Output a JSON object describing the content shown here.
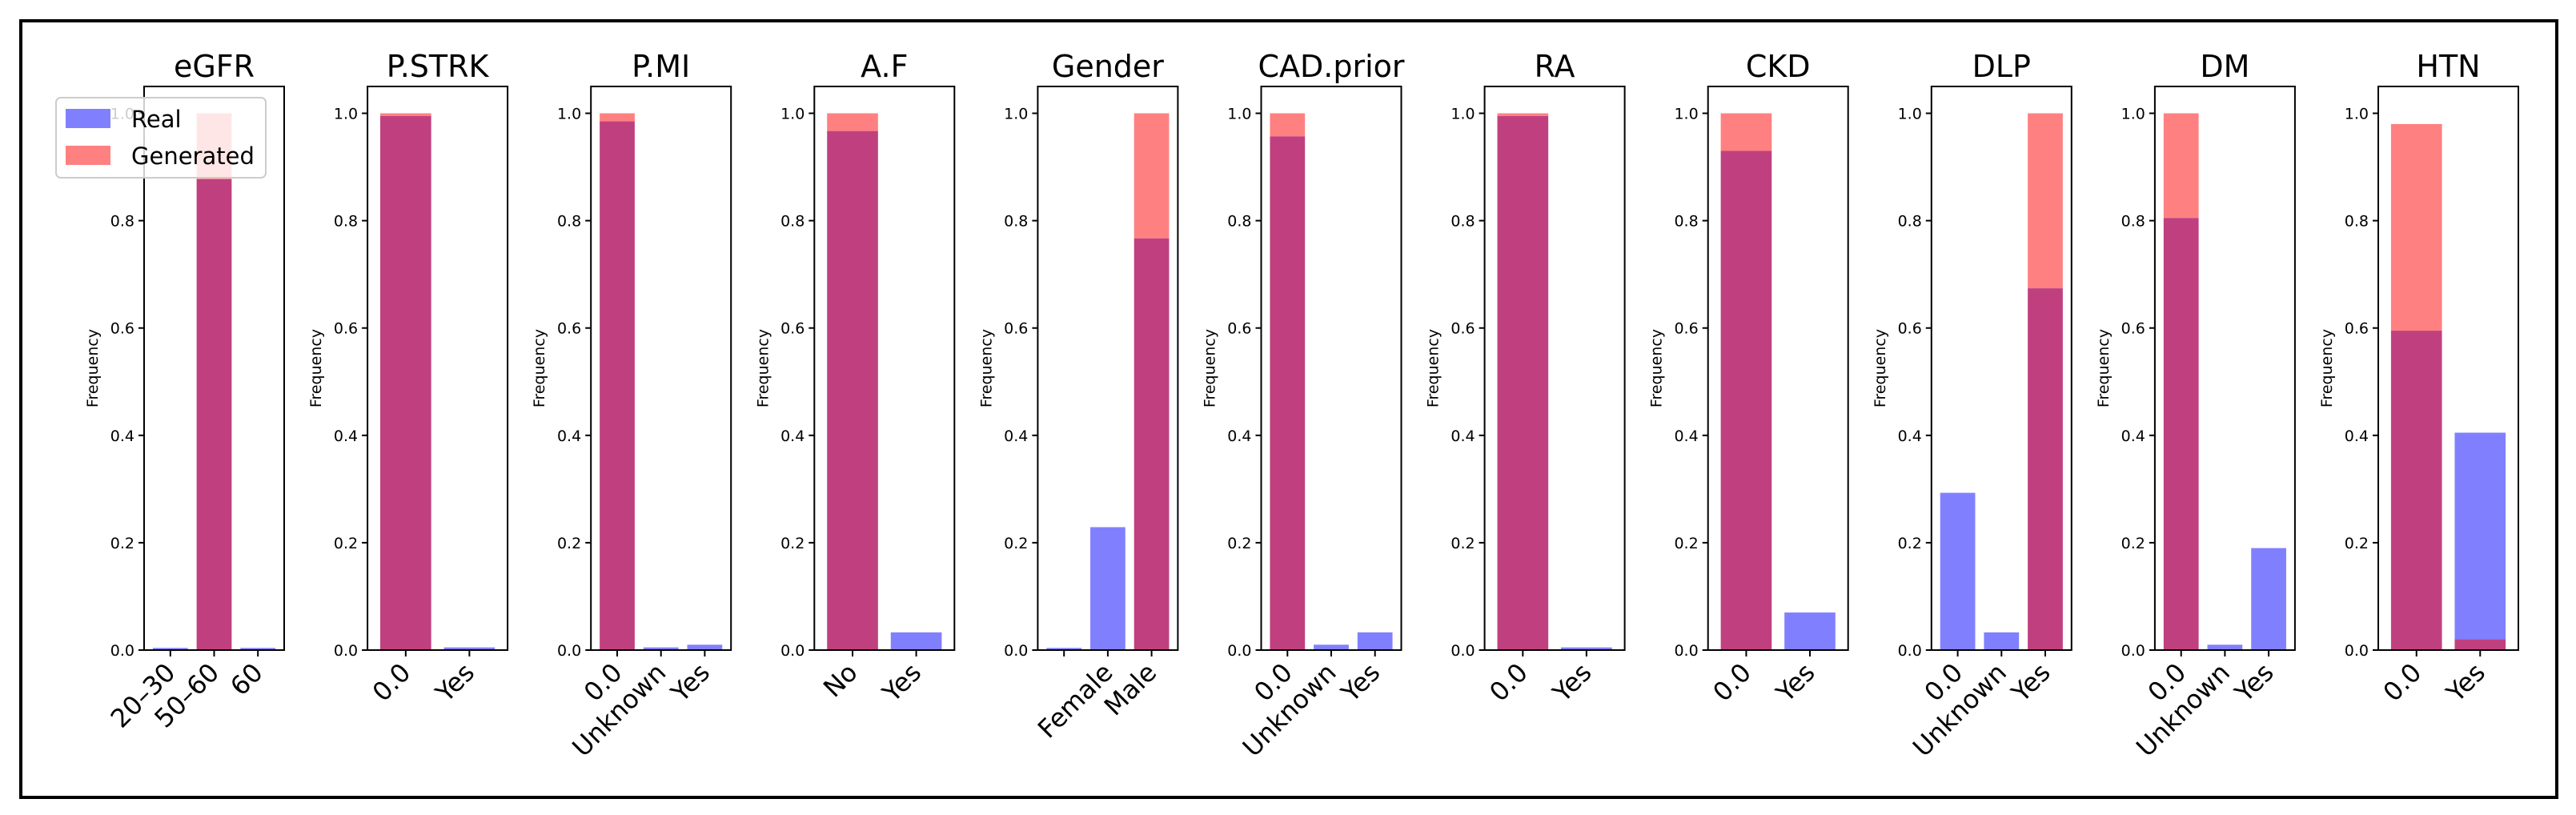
{
  "legend": {
    "location": "upper-left",
    "entries": [
      {
        "label": "Real",
        "color": "#8080ff"
      },
      {
        "label": "Generated",
        "color": "#ff8080"
      }
    ]
  },
  "colors": {
    "real": "#8080ff",
    "generated": "#ff8080",
    "overlap": "#c0407f"
  },
  "chart_data": [
    {
      "type": "bar",
      "title": "eGFR",
      "ylabel": "Frequency",
      "ylim": [
        0,
        1.0
      ],
      "yticks": [
        "0.0",
        "0.2",
        "0.4",
        "0.6",
        "0.8",
        "1.0"
      ],
      "categories": [
        "20–30",
        "50–60",
        "60"
      ],
      "series": [
        {
          "name": "Real",
          "values": [
            0.004,
            0.877,
            0.004
          ]
        },
        {
          "name": "Generated",
          "values": [
            0.0,
            1.0,
            0.0
          ]
        }
      ]
    },
    {
      "type": "bar",
      "title": "P.STRK",
      "ylabel": "Frequency",
      "ylim": [
        0,
        1.0
      ],
      "yticks": [
        "0.0",
        "0.2",
        "0.4",
        "0.6",
        "0.8",
        "1.0"
      ],
      "categories": [
        "0.0",
        "Yes"
      ],
      "series": [
        {
          "name": "Real",
          "values": [
            0.995,
            0.005
          ]
        },
        {
          "name": "Generated",
          "values": [
            1.0,
            0.0
          ]
        }
      ]
    },
    {
      "type": "bar",
      "title": "P.MI",
      "ylabel": "Frequency",
      "ylim": [
        0,
        1.0
      ],
      "yticks": [
        "0.0",
        "0.2",
        "0.4",
        "0.6",
        "0.8",
        "1.0"
      ],
      "categories": [
        "0.0",
        "Unknown",
        "Yes"
      ],
      "series": [
        {
          "name": "Real",
          "values": [
            0.985,
            0.005,
            0.01
          ]
        },
        {
          "name": "Generated",
          "values": [
            1.0,
            0.0,
            0.0
          ]
        }
      ]
    },
    {
      "type": "bar",
      "title": "A.F",
      "ylabel": "Frequency",
      "ylim": [
        0,
        1.0
      ],
      "yticks": [
        "0.0",
        "0.2",
        "0.4",
        "0.6",
        "0.8",
        "1.0"
      ],
      "categories": [
        "No",
        "Yes"
      ],
      "series": [
        {
          "name": "Real",
          "values": [
            0.967,
            0.033
          ]
        },
        {
          "name": "Generated",
          "values": [
            1.0,
            0.0
          ]
        }
      ]
    },
    {
      "type": "bar",
      "title": "Gender",
      "ylabel": "Frequency",
      "ylim": [
        0,
        1.0
      ],
      "yticks": [
        "0.0",
        "0.2",
        "0.4",
        "0.6",
        "0.8",
        "1.0"
      ],
      "categories": [
        "",
        "Female",
        "Male"
      ],
      "series": [
        {
          "name": "Real",
          "values": [
            0.004,
            0.229,
            0.767
          ]
        },
        {
          "name": "Generated",
          "values": [
            0.0,
            0.0,
            1.0
          ]
        }
      ]
    },
    {
      "type": "bar",
      "title": "CAD.prior",
      "ylabel": "Frequency",
      "ylim": [
        0,
        1.0
      ],
      "yticks": [
        "0.0",
        "0.2",
        "0.4",
        "0.6",
        "0.8",
        "1.0"
      ],
      "categories": [
        "0.0",
        "Unknown",
        "Yes"
      ],
      "series": [
        {
          "name": "Real",
          "values": [
            0.957,
            0.01,
            0.033
          ]
        },
        {
          "name": "Generated",
          "values": [
            1.0,
            0.0,
            0.0
          ]
        }
      ]
    },
    {
      "type": "bar",
      "title": "RA",
      "ylabel": "Frequency",
      "ylim": [
        0,
        1.0
      ],
      "yticks": [
        "0.0",
        "0.2",
        "0.4",
        "0.6",
        "0.8",
        "1.0"
      ],
      "categories": [
        "0.0",
        "Yes"
      ],
      "series": [
        {
          "name": "Real",
          "values": [
            0.995,
            0.005
          ]
        },
        {
          "name": "Generated",
          "values": [
            1.0,
            0.0
          ]
        }
      ]
    },
    {
      "type": "bar",
      "title": "CKD",
      "ylabel": "Frequency",
      "ylim": [
        0,
        1.0
      ],
      "yticks": [
        "0.0",
        "0.2",
        "0.4",
        "0.6",
        "0.8",
        "1.0"
      ],
      "categories": [
        "0.0",
        "Yes"
      ],
      "series": [
        {
          "name": "Real",
          "values": [
            0.93,
            0.07
          ]
        },
        {
          "name": "Generated",
          "values": [
            1.0,
            0.0
          ]
        }
      ]
    },
    {
      "type": "bar",
      "title": "DLP",
      "ylabel": "Frequency",
      "ylim": [
        0,
        1.0
      ],
      "yticks": [
        "0.0",
        "0.2",
        "0.4",
        "0.6",
        "0.8",
        "1.0"
      ],
      "categories": [
        "0.0",
        "Unknown",
        "Yes"
      ],
      "series": [
        {
          "name": "Real",
          "values": [
            0.293,
            0.033,
            0.674
          ]
        },
        {
          "name": "Generated",
          "values": [
            0.0,
            0.0,
            1.0
          ]
        }
      ]
    },
    {
      "type": "bar",
      "title": "DM",
      "ylabel": "Frequency",
      "ylim": [
        0,
        1.0
      ],
      "yticks": [
        "0.0",
        "0.2",
        "0.4",
        "0.6",
        "0.8",
        "1.0"
      ],
      "categories": [
        "0.0",
        "Unknown",
        "Yes"
      ],
      "series": [
        {
          "name": "Real",
          "values": [
            0.805,
            0.01,
            0.19
          ]
        },
        {
          "name": "Generated",
          "values": [
            1.0,
            0.0,
            0.0
          ]
        }
      ]
    },
    {
      "type": "bar",
      "title": "HTN",
      "ylabel": "Frequency",
      "ylim": [
        0,
        1.0
      ],
      "yticks": [
        "0.0",
        "0.2",
        "0.4",
        "0.6",
        "0.8",
        "1.0"
      ],
      "categories": [
        "0.0",
        "Yes"
      ],
      "series": [
        {
          "name": "Real",
          "values": [
            0.595,
            0.405
          ]
        },
        {
          "name": "Generated",
          "values": [
            0.98,
            0.02
          ]
        }
      ]
    }
  ]
}
